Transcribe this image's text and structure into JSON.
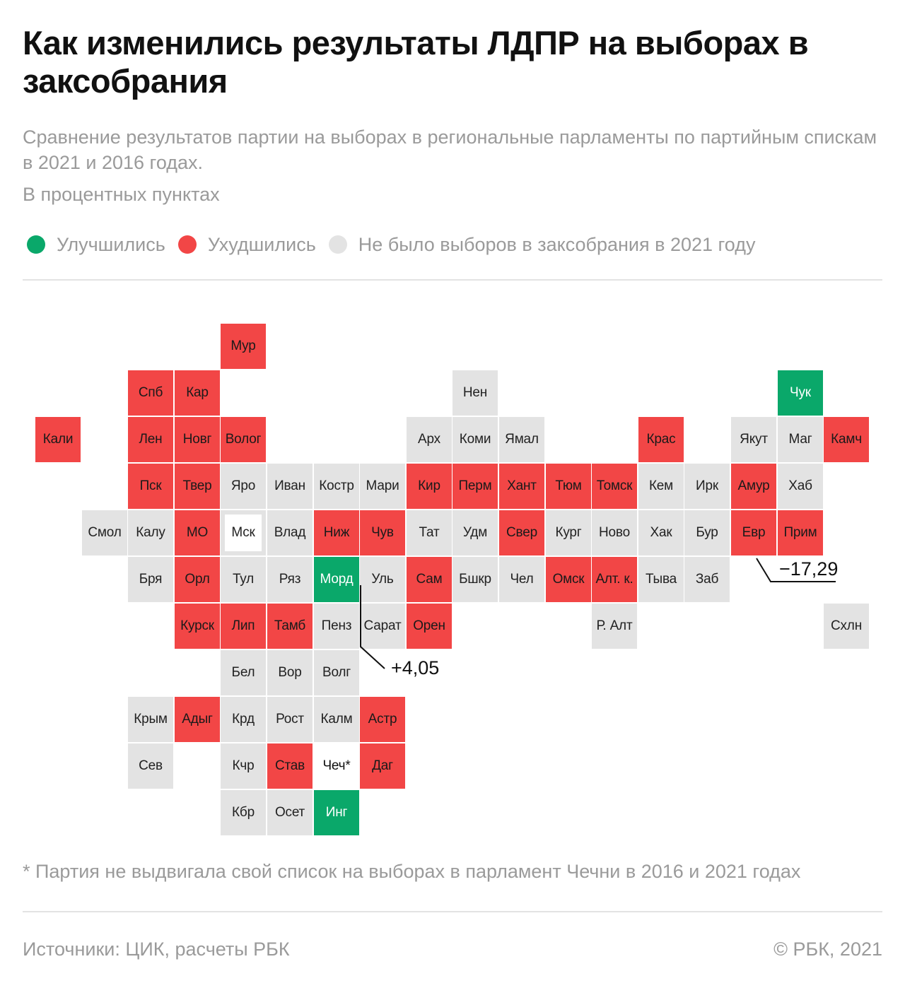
{
  "title": "Как изменились результаты ЛДПР на выборах в заксобрания",
  "subtitle": "Сравнение результатов партии на выборах в региональные парламенты по партийным спискам в 2021 и 2016 годах.",
  "units": "В процентных пунктах",
  "colors": {
    "improved": "#0aa86a",
    "worsened": "#f24646",
    "no_election": "#e3e3e3"
  },
  "legend": {
    "improved": "Улучшились",
    "worsened": "Ухудшились",
    "no_election": "Не было выборов в заксобрания в 2021 году"
  },
  "regions": [
    {
      "label": "Мур",
      "status": "worsened",
      "col": 5,
      "row": 0
    },
    {
      "label": "Спб",
      "status": "worsened",
      "col": 3,
      "row": 1
    },
    {
      "label": "Кар",
      "status": "worsened",
      "col": 4,
      "row": 1
    },
    {
      "label": "Нен",
      "status": "no_election",
      "col": 10,
      "row": 1
    },
    {
      "label": "Чук",
      "status": "improved",
      "col": 17,
      "row": 1
    },
    {
      "label": "Кали",
      "status": "worsened",
      "col": 1,
      "row": 2
    },
    {
      "label": "Лен",
      "status": "worsened",
      "col": 3,
      "row": 2
    },
    {
      "label": "Новг",
      "status": "worsened",
      "col": 4,
      "row": 2
    },
    {
      "label": "Волог",
      "status": "worsened",
      "col": 5,
      "row": 2
    },
    {
      "label": "Арх",
      "status": "no_election",
      "col": 9,
      "row": 2
    },
    {
      "label": "Коми",
      "status": "no_election",
      "col": 10,
      "row": 2
    },
    {
      "label": "Ямал",
      "status": "no_election",
      "col": 11,
      "row": 2
    },
    {
      "label": "Крас",
      "status": "worsened",
      "col": 14,
      "row": 2
    },
    {
      "label": "Якут",
      "status": "no_election",
      "col": 16,
      "row": 2
    },
    {
      "label": "Маг",
      "status": "no_election",
      "col": 17,
      "row": 2
    },
    {
      "label": "Камч",
      "status": "worsened",
      "col": 18,
      "row": 2
    },
    {
      "label": "Пск",
      "status": "worsened",
      "col": 3,
      "row": 3
    },
    {
      "label": "Твер",
      "status": "worsened",
      "col": 4,
      "row": 3
    },
    {
      "label": "Яро",
      "status": "no_election",
      "col": 5,
      "row": 3
    },
    {
      "label": "Иван",
      "status": "no_election",
      "col": 6,
      "row": 3
    },
    {
      "label": "Костр",
      "status": "no_election",
      "col": 7,
      "row": 3
    },
    {
      "label": "Мари",
      "status": "no_election",
      "col": 8,
      "row": 3
    },
    {
      "label": "Кир",
      "status": "worsened",
      "col": 9,
      "row": 3
    },
    {
      "label": "Перм",
      "status": "worsened",
      "col": 10,
      "row": 3
    },
    {
      "label": "Хант",
      "status": "worsened",
      "col": 11,
      "row": 3
    },
    {
      "label": "Тюм",
      "status": "worsened",
      "col": 12,
      "row": 3
    },
    {
      "label": "Томск",
      "status": "worsened",
      "col": 13,
      "row": 3
    },
    {
      "label": "Кем",
      "status": "no_election",
      "col": 14,
      "row": 3
    },
    {
      "label": "Ирк",
      "status": "no_election",
      "col": 15,
      "row": 3
    },
    {
      "label": "Амур",
      "status": "worsened",
      "col": 16,
      "row": 3
    },
    {
      "label": "Хаб",
      "status": "no_election",
      "col": 17,
      "row": 3
    },
    {
      "label": "Смол",
      "status": "no_election",
      "col": 2,
      "row": 4
    },
    {
      "label": "Калу",
      "status": "no_election",
      "col": 3,
      "row": 4
    },
    {
      "label": "МО",
      "status": "worsened",
      "col": 4,
      "row": 4
    },
    {
      "label": "Мск",
      "status": "no_election",
      "col": 5,
      "row": 4,
      "outlined": true
    },
    {
      "label": "Влад",
      "status": "no_election",
      "col": 6,
      "row": 4
    },
    {
      "label": "Ниж",
      "status": "worsened",
      "col": 7,
      "row": 4
    },
    {
      "label": "Чув",
      "status": "worsened",
      "col": 8,
      "row": 4
    },
    {
      "label": "Тат",
      "status": "no_election",
      "col": 9,
      "row": 4
    },
    {
      "label": "Удм",
      "status": "no_election",
      "col": 10,
      "row": 4
    },
    {
      "label": "Свер",
      "status": "worsened",
      "col": 11,
      "row": 4
    },
    {
      "label": "Кург",
      "status": "no_election",
      "col": 12,
      "row": 4
    },
    {
      "label": "Ново",
      "status": "no_election",
      "col": 13,
      "row": 4
    },
    {
      "label": "Хак",
      "status": "no_election",
      "col": 14,
      "row": 4
    },
    {
      "label": "Бур",
      "status": "no_election",
      "col": 15,
      "row": 4
    },
    {
      "label": "Евр",
      "status": "worsened",
      "col": 16,
      "row": 4
    },
    {
      "label": "Прим",
      "status": "worsened",
      "col": 17,
      "row": 4
    },
    {
      "label": "Бря",
      "status": "no_election",
      "col": 3,
      "row": 5
    },
    {
      "label": "Орл",
      "status": "worsened",
      "col": 4,
      "row": 5
    },
    {
      "label": "Тул",
      "status": "no_election",
      "col": 5,
      "row": 5
    },
    {
      "label": "Ряз",
      "status": "no_election",
      "col": 6,
      "row": 5
    },
    {
      "label": "Морд",
      "status": "improved",
      "col": 7,
      "row": 5
    },
    {
      "label": "Уль",
      "status": "no_election",
      "col": 8,
      "row": 5
    },
    {
      "label": "Сам",
      "status": "worsened",
      "col": 9,
      "row": 5
    },
    {
      "label": "Бшкр",
      "status": "no_election",
      "col": 10,
      "row": 5
    },
    {
      "label": "Чел",
      "status": "no_election",
      "col": 11,
      "row": 5
    },
    {
      "label": "Омск",
      "status": "worsened",
      "col": 12,
      "row": 5
    },
    {
      "label": "Алт. к.",
      "status": "worsened",
      "col": 13,
      "row": 5
    },
    {
      "label": "Тыва",
      "status": "no_election",
      "col": 14,
      "row": 5
    },
    {
      "label": "Заб",
      "status": "no_election",
      "col": 15,
      "row": 5
    },
    {
      "label": "Курск",
      "status": "worsened",
      "col": 4,
      "row": 6
    },
    {
      "label": "Лип",
      "status": "worsened",
      "col": 5,
      "row": 6
    },
    {
      "label": "Тамб",
      "status": "worsened",
      "col": 6,
      "row": 6
    },
    {
      "label": "Пенз",
      "status": "no_election",
      "col": 7,
      "row": 6
    },
    {
      "label": "Сарат",
      "status": "no_election",
      "col": 8,
      "row": 6
    },
    {
      "label": "Орен",
      "status": "worsened",
      "col": 9,
      "row": 6
    },
    {
      "label": "Р. Алт",
      "status": "no_election",
      "col": 13,
      "row": 6
    },
    {
      "label": "Схлн",
      "status": "no_election",
      "col": 18,
      "row": 6
    },
    {
      "label": "Бел",
      "status": "no_election",
      "col": 5,
      "row": 7
    },
    {
      "label": "Вор",
      "status": "no_election",
      "col": 6,
      "row": 7
    },
    {
      "label": "Волг",
      "status": "no_election",
      "col": 7,
      "row": 7
    },
    {
      "label": "Крым",
      "status": "no_election",
      "col": 3,
      "row": 8
    },
    {
      "label": "Адыг",
      "status": "worsened",
      "col": 4,
      "row": 8
    },
    {
      "label": "Крд",
      "status": "no_election",
      "col": 5,
      "row": 8
    },
    {
      "label": "Рост",
      "status": "no_election",
      "col": 6,
      "row": 8
    },
    {
      "label": "Калм",
      "status": "no_election",
      "col": 7,
      "row": 8
    },
    {
      "label": "Астр",
      "status": "worsened",
      "col": 8,
      "row": 8
    },
    {
      "label": "Сев",
      "status": "no_election",
      "col": 3,
      "row": 9
    },
    {
      "label": "Кчр",
      "status": "no_election",
      "col": 5,
      "row": 9
    },
    {
      "label": "Став",
      "status": "worsened",
      "col": 6,
      "row": 9
    },
    {
      "label": "Чеч*",
      "status": "none",
      "col": 7,
      "row": 9
    },
    {
      "label": "Даг",
      "status": "worsened",
      "col": 8,
      "row": 9
    },
    {
      "label": "Кбр",
      "status": "no_election",
      "col": 5,
      "row": 10
    },
    {
      "label": "Осет",
      "status": "no_election",
      "col": 6,
      "row": 10
    },
    {
      "label": "Инг",
      "status": "improved",
      "col": 7,
      "row": 10
    }
  ],
  "callouts": [
    {
      "region": "Морд",
      "value": "+4,05"
    },
    {
      "region": "Евр",
      "value": "−17,29"
    }
  ],
  "footnote": "* Партия не выдвигала свой список на выборах в парламент Чечни в 2016 и 2021 годах",
  "source": "Источники: ЦИК, расчеты РБК",
  "copyright": "©  РБК, 2021"
}
